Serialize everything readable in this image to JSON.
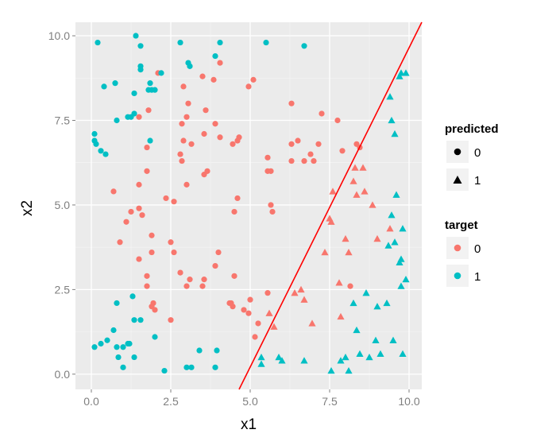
{
  "chart_data": {
    "type": "scatter",
    "xlabel": "x1",
    "ylabel": "x2",
    "xlim": [
      -0.5,
      10.4
    ],
    "ylim": [
      -0.45,
      10.4
    ],
    "x_ticks": [
      0.0,
      2.5,
      5.0,
      7.5,
      10.0
    ],
    "x_tick_labels": [
      "0.0",
      "2.5",
      "5.0",
      "7.5",
      "10.0"
    ],
    "y_ticks": [
      0.0,
      2.5,
      5.0,
      7.5,
      10.0
    ],
    "y_tick_labels": [
      "0.0",
      "2.5",
      "5.0",
      "7.5",
      "10.0"
    ],
    "grid": true,
    "background": "#ebebeb",
    "colors": {
      "target_0": "#f8766d",
      "target_1": "#00bfc4",
      "line": "#ff0000"
    },
    "decision_line": {
      "x": [
        4.65,
        10.4
      ],
      "y": [
        -0.45,
        10.4
      ]
    },
    "legend": {
      "position": "right",
      "shape": {
        "title": "predicted",
        "items": [
          {
            "label": "0",
            "shape": "circle"
          },
          {
            "label": "1",
            "shape": "triangle"
          }
        ]
      },
      "color": {
        "title": "target",
        "items": [
          {
            "label": "0",
            "color": "#f8766d"
          },
          {
            "label": "1",
            "color": "#00bfc4"
          }
        ]
      }
    },
    "series": [
      {
        "name": "target 0 / predicted 0",
        "target": "0",
        "predicted": "0",
        "x": [
          2.1,
          2.9,
          3.5,
          3.85,
          4.05,
          3.05,
          3.0,
          2.85,
          2.9,
          1.8,
          1.5,
          1.75,
          2.8,
          2.85,
          3.55,
          3.9,
          4.05,
          4.45,
          4.6,
          4.65,
          3.6,
          3.15,
          3.65,
          2.35,
          2.6,
          3.55,
          3.0,
          2.5,
          1.75,
          0.7,
          1.5,
          1.1,
          1.25,
          1.5,
          1.6,
          1.5,
          1.9,
          0.9,
          1.9,
          1.75,
          1.75,
          1.95,
          1.9,
          2.0,
          2.5,
          2.6,
          2.8,
          3.0,
          3.1,
          3.5,
          3.55,
          3.9,
          4.0,
          4.35,
          4.45,
          4.5,
          4.5,
          4.6,
          4.95,
          5.1,
          5.55,
          5.65,
          5.7,
          5.55,
          5.65,
          6.3,
          6.5,
          6.3,
          6.7,
          6.9,
          7.0,
          7.15,
          7.25,
          7.75,
          7.9,
          6.3,
          8.15,
          8.35,
          8.45,
          4.4,
          4.8,
          4.95,
          5.0,
          5.15,
          5.25,
          5.55
        ],
        "y": [
          8.9,
          8.5,
          8.8,
          8.7,
          9.2,
          8.0,
          7.6,
          7.4,
          6.9,
          7.8,
          7.6,
          6.7,
          6.5,
          6.3,
          7.1,
          7.4,
          7.0,
          6.8,
          6.9,
          7.0,
          7.8,
          6.8,
          6.0,
          5.2,
          5.1,
          5.9,
          5.6,
          3.9,
          6.0,
          5.4,
          5.6,
          4.5,
          4.8,
          4.9,
          4.7,
          3.4,
          3.6,
          3.9,
          4.1,
          2.9,
          2.6,
          2.1,
          2.0,
          1.9,
          1.6,
          3.6,
          3.0,
          2.6,
          2.8,
          2.6,
          2.8,
          3.2,
          3.6,
          2.1,
          2.0,
          2.9,
          4.8,
          5.2,
          8.5,
          8.7,
          6.4,
          5.0,
          4.8,
          6.0,
          6.0,
          6.3,
          6.9,
          8.0,
          6.3,
          6.5,
          6.3,
          6.8,
          7.7,
          7.5,
          6.6,
          6.8,
          2.6,
          6.8,
          6.7,
          2.1,
          1.9,
          1.8,
          2.2,
          1.1,
          1.5,
          2.4
        ]
      },
      {
        "name": "target 0 / predicted 1",
        "target": "0",
        "predicted": "1",
        "x": [
          5.6,
          5.75,
          6.4,
          6.6,
          6.7,
          6.95,
          7.35,
          7.5,
          7.55,
          7.6,
          7.8,
          7.85,
          8.0,
          8.1,
          8.25,
          8.3,
          8.35,
          8.55,
          8.6,
          8.85,
          9.0,
          9.4
        ],
        "y": [
          1.8,
          1.4,
          2.4,
          2.5,
          2.2,
          1.5,
          3.6,
          4.6,
          4.5,
          5.4,
          2.7,
          1.7,
          4.0,
          3.6,
          5.7,
          6.1,
          5.3,
          6.1,
          5.4,
          5.0,
          4.0,
          4.3
        ]
      },
      {
        "name": "target 1 / predicted 0",
        "target": "1",
        "predicted": "0",
        "x": [
          0.2,
          0.4,
          0.75,
          0.8,
          1.15,
          1.35,
          1.4,
          1.55,
          1.85,
          2.0,
          1.55,
          1.8,
          1.9,
          2.2,
          1.55,
          1.35,
          1.25,
          1.85,
          2.8,
          3.05,
          3.1,
          3.9,
          4.05,
          5.5,
          6.7,
          0.1,
          0.1,
          0.15,
          0.3,
          0.45,
          0.8,
          0.1,
          0.3,
          0.5,
          0.7,
          0.8,
          1.15,
          1.35,
          1.0,
          1.3,
          1.35,
          1.55,
          2.0,
          0.85,
          1.0,
          1.2,
          2.3,
          3.0,
          3.15,
          3.4,
          3.9,
          3.95
        ],
        "y": [
          9.8,
          8.5,
          8.6,
          7.5,
          7.6,
          7.7,
          10.0,
          9.7,
          8.6,
          8.4,
          9.0,
          8.4,
          8.4,
          8.9,
          9.1,
          8.3,
          7.6,
          6.9,
          9.8,
          9.2,
          9.1,
          9.4,
          9.8,
          9.8,
          9.7,
          7.1,
          6.9,
          6.8,
          6.6,
          6.5,
          2.1,
          0.8,
          0.9,
          1.0,
          1.3,
          0.8,
          0.9,
          0.5,
          0.2,
          2.3,
          1.6,
          1.6,
          1.1,
          0.5,
          0.8,
          0.9,
          0.1,
          0.2,
          0.2,
          0.7,
          0.2,
          0.7
        ]
      },
      {
        "name": "target 1 / predicted 1",
        "target": "1",
        "predicted": "1",
        "x": [
          5.35,
          5.35,
          5.9,
          6.0,
          6.7,
          7.55,
          7.85,
          8.0,
          8.1,
          8.25,
          8.35,
          8.45,
          8.65,
          8.75,
          8.95,
          9.0,
          9.1,
          9.3,
          9.35,
          9.45,
          9.5,
          9.55,
          9.6,
          9.7,
          9.75,
          9.75,
          9.8,
          9.8,
          9.9,
          9.9,
          9.4,
          9.45,
          9.55,
          9.7,
          9.75
        ],
        "y": [
          0.5,
          0.3,
          0.5,
          0.4,
          0.4,
          0.1,
          0.4,
          0.5,
          0.1,
          2.1,
          1.3,
          0.6,
          2.4,
          0.5,
          1.0,
          2.0,
          0.6,
          2.1,
          3.8,
          4.7,
          1.0,
          3.9,
          5.3,
          3.3,
          3.4,
          2.6,
          4.3,
          0.6,
          2.8,
          8.9,
          8.2,
          7.5,
          7.1,
          8.8,
          8.9
        ]
      }
    ]
  }
}
